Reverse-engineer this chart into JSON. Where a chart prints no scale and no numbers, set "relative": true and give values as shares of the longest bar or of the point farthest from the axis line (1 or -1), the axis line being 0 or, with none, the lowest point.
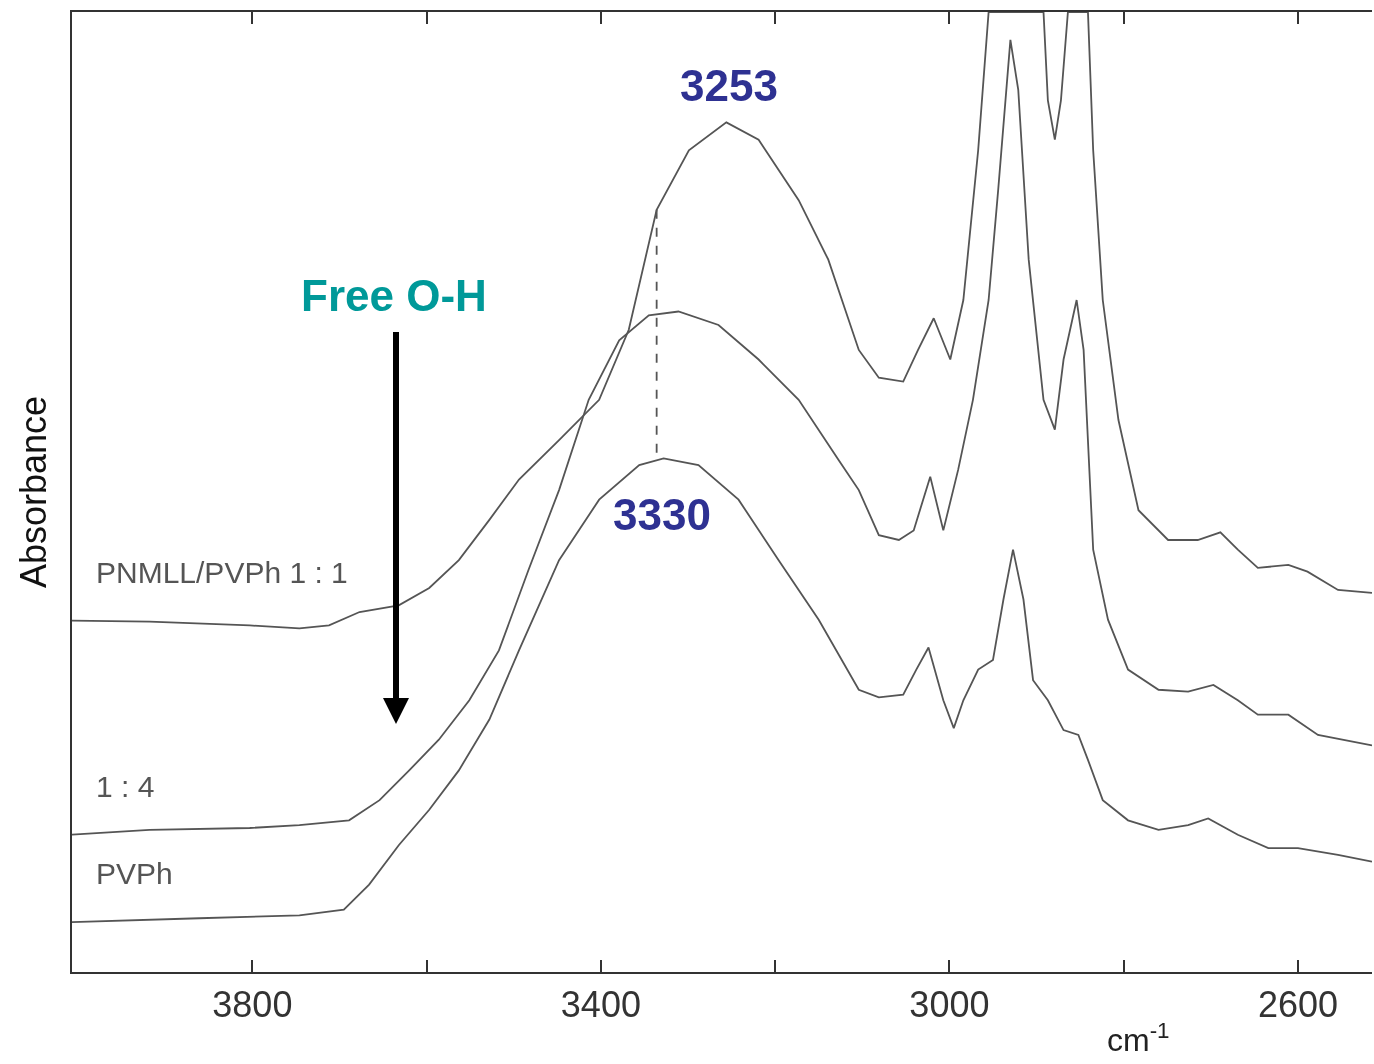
{
  "chart_data": {
    "type": "line",
    "relative": true,
    "xlabel": "cm$^{-1}$",
    "ylabel": "Absorbance",
    "xlim": [
      4007,
      2515
    ],
    "xticks": [
      3800,
      {
        "value": 3600,
        "label": null
      },
      3400,
      {
        "value": 3200,
        "label": null
      },
      3000,
      {
        "value": 2800,
        "label": null
      },
      2600
    ],
    "grid": false,
    "legend": false,
    "marker": "none",
    "line_style": "solid",
    "series": [
      {
        "name": "PNMLL/PVPh 1 : 1",
        "color": "#555555",
        "x": [
          4007,
          3918,
          3803,
          3746,
          3712,
          3677,
          3632,
          3597,
          3563,
          3528,
          3494,
          3448,
          3402,
          3368,
          3336,
          3299,
          3256,
          3219,
          3173,
          3139,
          3104,
          3081,
          3053,
          3036,
          3018,
          2999,
          2984,
          2967,
          2955,
          2938,
          2927,
          2892,
          2887,
          2879,
          2872,
          2864,
          2841,
          2835,
          2824,
          2806,
          2783,
          2749,
          2715,
          2689,
          2669,
          2646,
          2611,
          2589,
          2554,
          2515
        ],
        "values": [
          0.366,
          0.365,
          0.361,
          0.358,
          0.361,
          0.375,
          0.382,
          0.4,
          0.429,
          0.471,
          0.513,
          0.554,
          0.596,
          0.669,
          0.794,
          0.856,
          0.885,
          0.867,
          0.804,
          0.742,
          0.648,
          0.619,
          0.615,
          0.648,
          0.681,
          0.638,
          0.7,
          0.856,
          1,
          1,
          1,
          1,
          0.908,
          0.867,
          0.908,
          1,
          1,
          0.856,
          0.7,
          0.575,
          0.481,
          0.45,
          0.45,
          0.458,
          0.44,
          0.421,
          0.424,
          0.417,
          0.398,
          0.395
        ]
      },
      {
        "name": "1 : 4",
        "color": "#555555",
        "x": [
          4007,
          3918,
          3803,
          3746,
          3689,
          3654,
          3620,
          3586,
          3551,
          3517,
          3483,
          3448,
          3414,
          3379,
          3345,
          3311,
          3265,
          3219,
          3173,
          3127,
          3104,
          3081,
          3058,
          3041,
          3022,
          3007,
          2990,
          2973,
          2955,
          2944,
          2930,
          2921,
          2909,
          2892,
          2879,
          2869,
          2854,
          2846,
          2835,
          2818,
          2795,
          2760,
          2726,
          2697,
          2669,
          2646,
          2611,
          2577,
          2515
        ],
        "values": [
          0.143,
          0.148,
          0.15,
          0.153,
          0.158,
          0.179,
          0.21,
          0.242,
          0.283,
          0.335,
          0.419,
          0.502,
          0.596,
          0.658,
          0.684,
          0.688,
          0.674,
          0.638,
          0.596,
          0.533,
          0.502,
          0.455,
          0.45,
          0.46,
          0.516,
          0.46,
          0.523,
          0.596,
          0.7,
          0.815,
          0.971,
          0.919,
          0.742,
          0.596,
          0.565,
          0.638,
          0.7,
          0.648,
          0.44,
          0.367,
          0.315,
          0.294,
          0.292,
          0.299,
          0.283,
          0.268,
          0.268,
          0.247,
          0.236
        ]
      },
      {
        "name": "PVPh",
        "color": "#555555",
        "x": [
          4007,
          3861,
          3746,
          3695,
          3666,
          3632,
          3597,
          3563,
          3528,
          3494,
          3448,
          3402,
          3356,
          3328,
          3288,
          3242,
          3196,
          3150,
          3104,
          3081,
          3053,
          3038,
          3024,
          3007,
          2995,
          2984,
          2967,
          2950,
          2938,
          2927,
          2915,
          2904,
          2887,
          2869,
          2852,
          2841,
          2824,
          2795,
          2760,
          2726,
          2703,
          2669,
          2634,
          2600,
          2554,
          2515
        ],
        "values": [
          0.052,
          0.056,
          0.059,
          0.065,
          0.091,
          0.132,
          0.169,
          0.21,
          0.263,
          0.335,
          0.429,
          0.492,
          0.528,
          0.535,
          0.528,
          0.492,
          0.429,
          0.367,
          0.294,
          0.286,
          0.289,
          0.315,
          0.338,
          0.283,
          0.254,
          0.283,
          0.315,
          0.325,
          0.388,
          0.44,
          0.388,
          0.304,
          0.283,
          0.252,
          0.247,
          0.221,
          0.179,
          0.158,
          0.148,
          0.153,
          0.16,
          0.143,
          0.129,
          0.129,
          0.122,
          0.115
        ]
      },
      {
        "type": "line",
        "line_style": "dashed",
        "color": "#555555",
        "x": [
          3336,
          3336
        ],
        "values": [
          0.794,
          0.535
        ]
      }
    ],
    "annotations": [
      {
        "text": "3253",
        "x": 3253,
        "y": 0.885
      },
      {
        "text": "3330",
        "x": 3330,
        "y": 0.535
      },
      "Free O-H"
    ]
  }
}
